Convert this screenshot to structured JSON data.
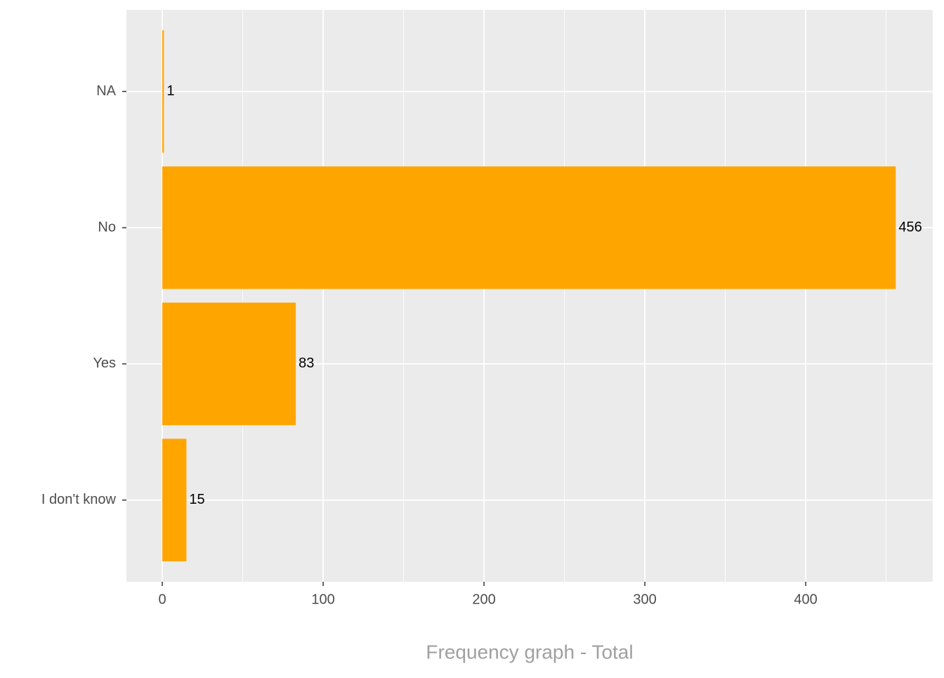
{
  "chart_data": {
    "type": "bar",
    "orientation": "horizontal",
    "categories": [
      "I don't know",
      "Yes",
      "No",
      "NA"
    ],
    "values": [
      15,
      83,
      456,
      1
    ],
    "color": "#ffa500",
    "xlim": [
      -22.3,
      479
    ],
    "xticks": [
      0,
      100,
      200,
      300,
      400
    ],
    "x_minor_ticks": [
      50,
      150,
      250,
      350,
      450
    ],
    "xlabel": "Frequency graph - Total",
    "grid": true
  }
}
